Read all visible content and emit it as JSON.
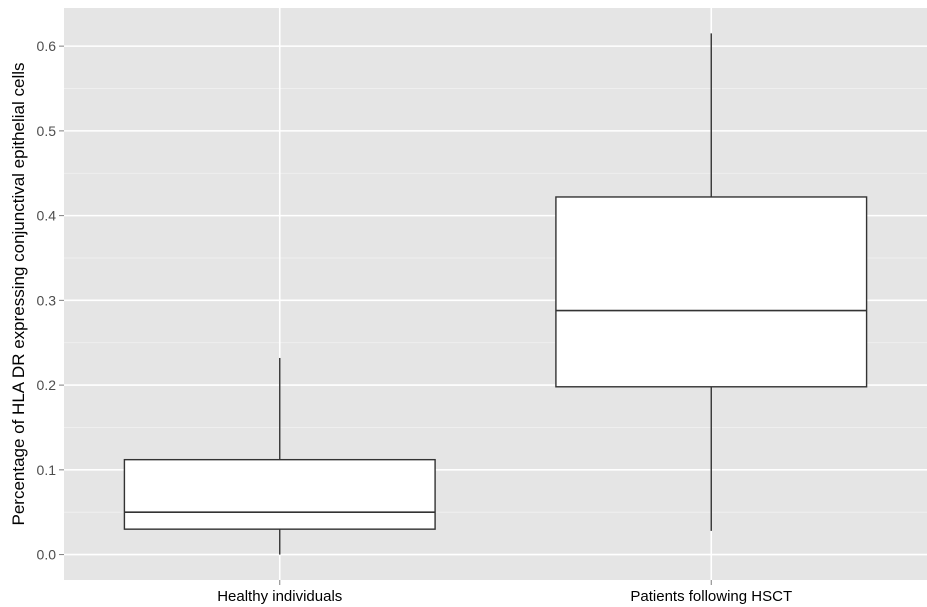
{
  "chart_data": {
    "type": "boxplot",
    "title": "",
    "xlabel": "",
    "ylabel": "Percentage of HLA DR expressing conjunctival epithelial cells",
    "ylim": [
      -0.03,
      0.645
    ],
    "y_ticks": [
      0.0,
      0.1,
      0.2,
      0.3,
      0.4,
      0.5,
      0.6
    ],
    "y_tick_labels": [
      "0.0",
      "0.1",
      "0.2",
      "0.3",
      "0.4",
      "0.5",
      "0.6"
    ],
    "grid": true,
    "categories": [
      "Healthy individuals",
      "Patients following HSCT"
    ],
    "boxes": [
      {
        "category": "Healthy individuals",
        "whisker_low": 0.0,
        "q1": 0.03,
        "median": 0.05,
        "q3": 0.112,
        "whisker_high": 0.232
      },
      {
        "category": "Patients following HSCT",
        "whisker_low": 0.028,
        "q1": 0.198,
        "median": 0.288,
        "q3": 0.422,
        "whisker_high": 0.615
      }
    ],
    "colors": {
      "panel": "#e5e5e5",
      "grid_major": "#ffffff",
      "grid_minor": "#f2f2f2",
      "box_fill": "#ffffff",
      "box_line": "#333333"
    }
  }
}
